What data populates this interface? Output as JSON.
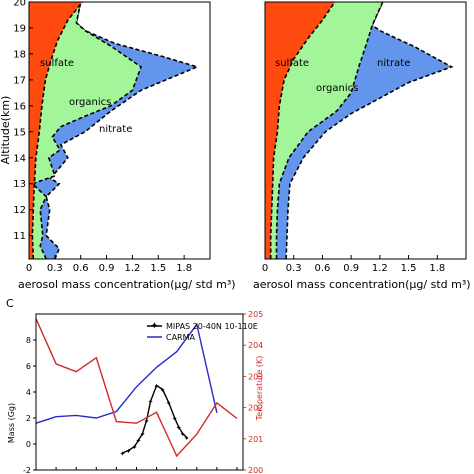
{
  "chart_data": [
    {
      "type": "area",
      "ylabel": "Altitude(km)",
      "xlabel": "aerosol mass concentration(μg/ std m³)",
      "xlim": [
        0,
        2.1
      ],
      "ylim": [
        10.1,
        20
      ],
      "x_ticks": [
        "0",
        "0.3",
        "0.6",
        "0.9",
        "1.2",
        "1.5",
        "1.8"
      ],
      "y_ticks": [
        "11",
        "12",
        "13",
        "14",
        "15",
        "16",
        "17",
        "18",
        "19",
        "20"
      ],
      "regions": [
        {
          "label": "sulfate",
          "color": "#ff4a10",
          "boundary": [
            [
              0.05,
              10.1
            ],
            [
              0.04,
              11
            ],
            [
              0.05,
              12
            ],
            [
              0.06,
              12.9
            ],
            [
              0.08,
              14
            ],
            [
              0.12,
              15
            ],
            [
              0.15,
              16
            ],
            [
              0.19,
              17
            ],
            [
              0.25,
              17.7
            ],
            [
              0.33,
              18.5
            ],
            [
              0.45,
              19.3
            ],
            [
              0.62,
              20
            ]
          ]
        },
        {
          "label": "organics",
          "color": "#a3f59a",
          "boundary": [
            [
              0.2,
              10.1
            ],
            [
              0.13,
              10.6
            ],
            [
              0.16,
              11
            ],
            [
              0.13,
              12
            ],
            [
              0.2,
              12.5
            ],
            [
              0.04,
              13
            ],
            [
              0.3,
              13.3
            ],
            [
              0.23,
              14
            ],
            [
              0.36,
              14.3
            ],
            [
              0.27,
              14.8
            ],
            [
              0.37,
              15.2
            ],
            [
              0.65,
              15.6
            ],
            [
              0.95,
              16
            ],
            [
              1.2,
              16.6
            ],
            [
              1.3,
              17.5
            ],
            [
              0.95,
              18.3
            ],
            [
              0.65,
              18.9
            ],
            [
              0.55,
              19.2
            ],
            [
              0.6,
              20
            ]
          ]
        },
        {
          "label": "nitrate",
          "color": "#6495ed",
          "boundary": [
            [
              0.3,
              10.1
            ],
            [
              0.35,
              10.5
            ],
            [
              0.2,
              11
            ],
            [
              0.24,
              12
            ],
            [
              0.2,
              12.5
            ],
            [
              0.35,
              13
            ],
            [
              0.25,
              13.2
            ],
            [
              0.45,
              14
            ],
            [
              0.37,
              14.5
            ],
            [
              0.65,
              15
            ],
            [
              0.95,
              15.8
            ],
            [
              1.3,
              16.6
            ],
            [
              1.95,
              17.5
            ],
            [
              1.55,
              17.9
            ],
            [
              1.0,
              18.4
            ],
            [
              0.65,
              18.9
            ],
            [
              0.55,
              19.2
            ],
            [
              0.6,
              20
            ]
          ]
        }
      ],
      "annotations": [
        "sulfate",
        "organics",
        "nitrate"
      ]
    },
    {
      "type": "area",
      "xlabel": "aerosol mass concentration(μg/ std m³)",
      "xlim": [
        0,
        2.1
      ],
      "ylim": [
        10.1,
        20
      ],
      "x_ticks": [
        "0",
        "0.3",
        "0.6",
        "0.9",
        "1.2",
        "1.5",
        "1.8"
      ],
      "regions": [
        {
          "label": "sulfate",
          "color": "#ff4a10",
          "boundary": [
            [
              0.06,
              10.1
            ],
            [
              0.06,
              11
            ],
            [
              0.07,
              12
            ],
            [
              0.08,
              13
            ],
            [
              0.09,
              14
            ],
            [
              0.13,
              15
            ],
            [
              0.15,
              16
            ],
            [
              0.2,
              17
            ],
            [
              0.3,
              17.8
            ],
            [
              0.45,
              18.6
            ],
            [
              0.6,
              19.3
            ],
            [
              0.73,
              20
            ]
          ]
        },
        {
          "label": "organics",
          "color": "#a3f59a",
          "boundary": [
            [
              0.12,
              10.1
            ],
            [
              0.12,
              11
            ],
            [
              0.13,
              12
            ],
            [
              0.15,
              13
            ],
            [
              0.25,
              14
            ],
            [
              0.45,
              15
            ],
            [
              0.75,
              15.8
            ],
            [
              0.9,
              16.5
            ],
            [
              0.98,
              17.5
            ],
            [
              1.07,
              18.5
            ],
            [
              1.12,
              19.1
            ],
            [
              1.23,
              20
            ]
          ]
        },
        {
          "label": "nitrate",
          "color": "#6495ed",
          "boundary": [
            [
              0.22,
              10.1
            ],
            [
              0.23,
              11
            ],
            [
              0.24,
              12
            ],
            [
              0.26,
              13
            ],
            [
              0.4,
              14
            ],
            [
              0.63,
              15
            ],
            [
              0.9,
              15.7
            ],
            [
              1.2,
              16.3
            ],
            [
              1.5,
              16.9
            ],
            [
              1.95,
              17.5
            ],
            [
              1.75,
              17.9
            ],
            [
              1.55,
              18.3
            ],
            [
              1.37,
              18.6
            ],
            [
              1.2,
              18.9
            ],
            [
              1.12,
              19.1
            ],
            [
              1.23,
              20
            ]
          ]
        }
      ],
      "annotations": [
        "sulfate",
        "organics",
        "nitrate"
      ]
    },
    {
      "type": "line",
      "panel_label": "C",
      "ylabel": "Mass (Gg)",
      "ylabel_right": "Temperature (K)",
      "ylim": [
        -2,
        10
      ],
      "ylim_right": [
        200,
        205
      ],
      "y_ticks": [
        "-2",
        "0",
        "2",
        "4",
        "6",
        "8"
      ],
      "y_ticks_right": [
        "200",
        "201",
        "202",
        "203",
        "204",
        "205"
      ],
      "legend_position": "top",
      "series": [
        {
          "name": "MIPAS 20-40N 10-110E",
          "color": "#000000",
          "axis": "left",
          "x": [
            5.3,
            5.6,
            5.9,
            6.1,
            6.3,
            6.5,
            6.7,
            7.0,
            7.3,
            7.6,
            7.9,
            8.1,
            8.3,
            8.5
          ],
          "values": [
            -0.7,
            -0.5,
            -0.2,
            0.3,
            0.8,
            1.8,
            3.3,
            4.5,
            4.2,
            3.2,
            2.0,
            1.3,
            0.8,
            0.5
          ]
        },
        {
          "name": "CARMA",
          "color": "#2a2ad0",
          "axis": "left",
          "x": [
            1,
            2,
            3,
            4,
            5,
            6,
            7,
            8,
            9,
            10
          ],
          "values": [
            1.6,
            2.1,
            2.2,
            2.0,
            2.5,
            4.4,
            5.9,
            7.1,
            9.2,
            2.4
          ]
        },
        {
          "color": "#d42828",
          "axis": "right",
          "x": [
            1,
            2,
            3,
            4,
            5,
            6,
            7,
            8,
            9,
            10,
            11
          ],
          "values": [
            204.85,
            203.4,
            203.15,
            203.6,
            201.55,
            201.5,
            201.85,
            200.45,
            201.15,
            202.15,
            201.65
          ]
        }
      ]
    }
  ]
}
